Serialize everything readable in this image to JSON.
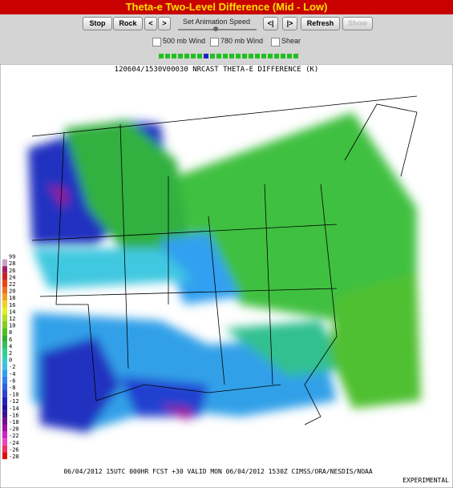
{
  "header": {
    "title": "Theta-e Two-Level Difference (Mid - Low)"
  },
  "controls": {
    "buttons": [
      "Stop",
      "Rock",
      "<",
      ">"
    ],
    "speed_label": "Set Animation Speed",
    "buttons2": [
      "<|",
      "|>",
      "Refresh",
      "Show"
    ],
    "checkboxes": [
      "500 mb Wind",
      "780 mb Wind",
      "Shear"
    ]
  },
  "map": {
    "title": "120604/1530V00030 NRCAST THETA-E DIFFERENCE (K)",
    "footer": "06/04/2012 15UTC 000HR FCST +30 VALID MON 06/04/2012 1530Z  CIMSS/ORA/NESDIS/NOAA",
    "badge": "EXPERIMENTAL",
    "legend": {
      "labels": [
        99,
        28,
        26,
        24,
        22,
        20,
        18,
        16,
        14,
        12,
        10,
        8,
        6,
        4,
        2,
        0,
        -2,
        -4,
        -6,
        -8,
        -10,
        -12,
        -14,
        -16,
        -18,
        -20,
        -22,
        -24,
        -26,
        -28
      ],
      "colors": [
        "#ffffff",
        "#c8a0c8",
        "#a02060",
        "#d02020",
        "#f04010",
        "#f07020",
        "#f0a020",
        "#f0d020",
        "#e0f020",
        "#b0e020",
        "#80d020",
        "#50c020",
        "#30b030",
        "#30c060",
        "#30d090",
        "#30d0c0",
        "#40c0e0",
        "#30a0f0",
        "#3080f0",
        "#3060e0",
        "#3040d0",
        "#2020c0",
        "#2010a0",
        "#401090",
        "#701090",
        "#a010a0",
        "#d020c0",
        "#f040c0",
        "#f03060",
        "#e01010"
      ]
    }
  }
}
